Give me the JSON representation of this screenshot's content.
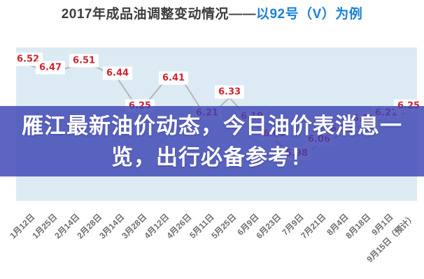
{
  "title": {
    "main": "2017年成品油调整变动情况——",
    "highlight": "以92号（V）为例"
  },
  "banner": {
    "line1": "雁江最新油价动态，今日油价表消息一",
    "line2": "览，出行必备参考！"
  },
  "chart_data": {
    "type": "line",
    "title": "2017年成品油调整变动情况——以92号（V）为例",
    "x": [
      "1月12日",
      "1月25日",
      "2月14日",
      "2月28日",
      "3月14日",
      "3月28日",
      "4月12日",
      "4月26日",
      "5月11日",
      "5月25日",
      "6月9日",
      "6月23日",
      "7月9日",
      "7月21日",
      "8月4日",
      "8月18日",
      "9月1日",
      "9月15日（预计）"
    ],
    "values": [
      6.52,
      6.47,
      6.51,
      6.51,
      6.44,
      6.25,
      6.41,
      6.41,
      6.21,
      6.33,
      6.19,
      6.09,
      5.98,
      6.06,
      6.12,
      6.18,
      6.21,
      6.25
    ],
    "point_labels": [
      "6.52",
      "6.47",
      "6.51",
      null,
      "6.44",
      "6.25",
      "6.41",
      null,
      "6.21",
      "6.33",
      "6.19",
      "6.09",
      "5.98",
      "6.06",
      "6.12",
      "6.18",
      "6.21",
      "6.25"
    ],
    "xlabel": "",
    "ylabel": "",
    "ylim": [
      5.9,
      6.6
    ],
    "grid": false,
    "legend": "none",
    "x_tick_rotation": -45
  },
  "colors": {
    "title_dark": "#3d3d3d",
    "title_blue": "#1a80d6",
    "plot_bg": "#dcebf3",
    "line": "#b5b5b5",
    "value_label_text": "#cf2430",
    "value_label_bg": "#ffffff",
    "axis_label": "#6e6e6e",
    "banner_bg": "rgba(59,67,179,0.82)",
    "banner_text": "#ffffff"
  }
}
